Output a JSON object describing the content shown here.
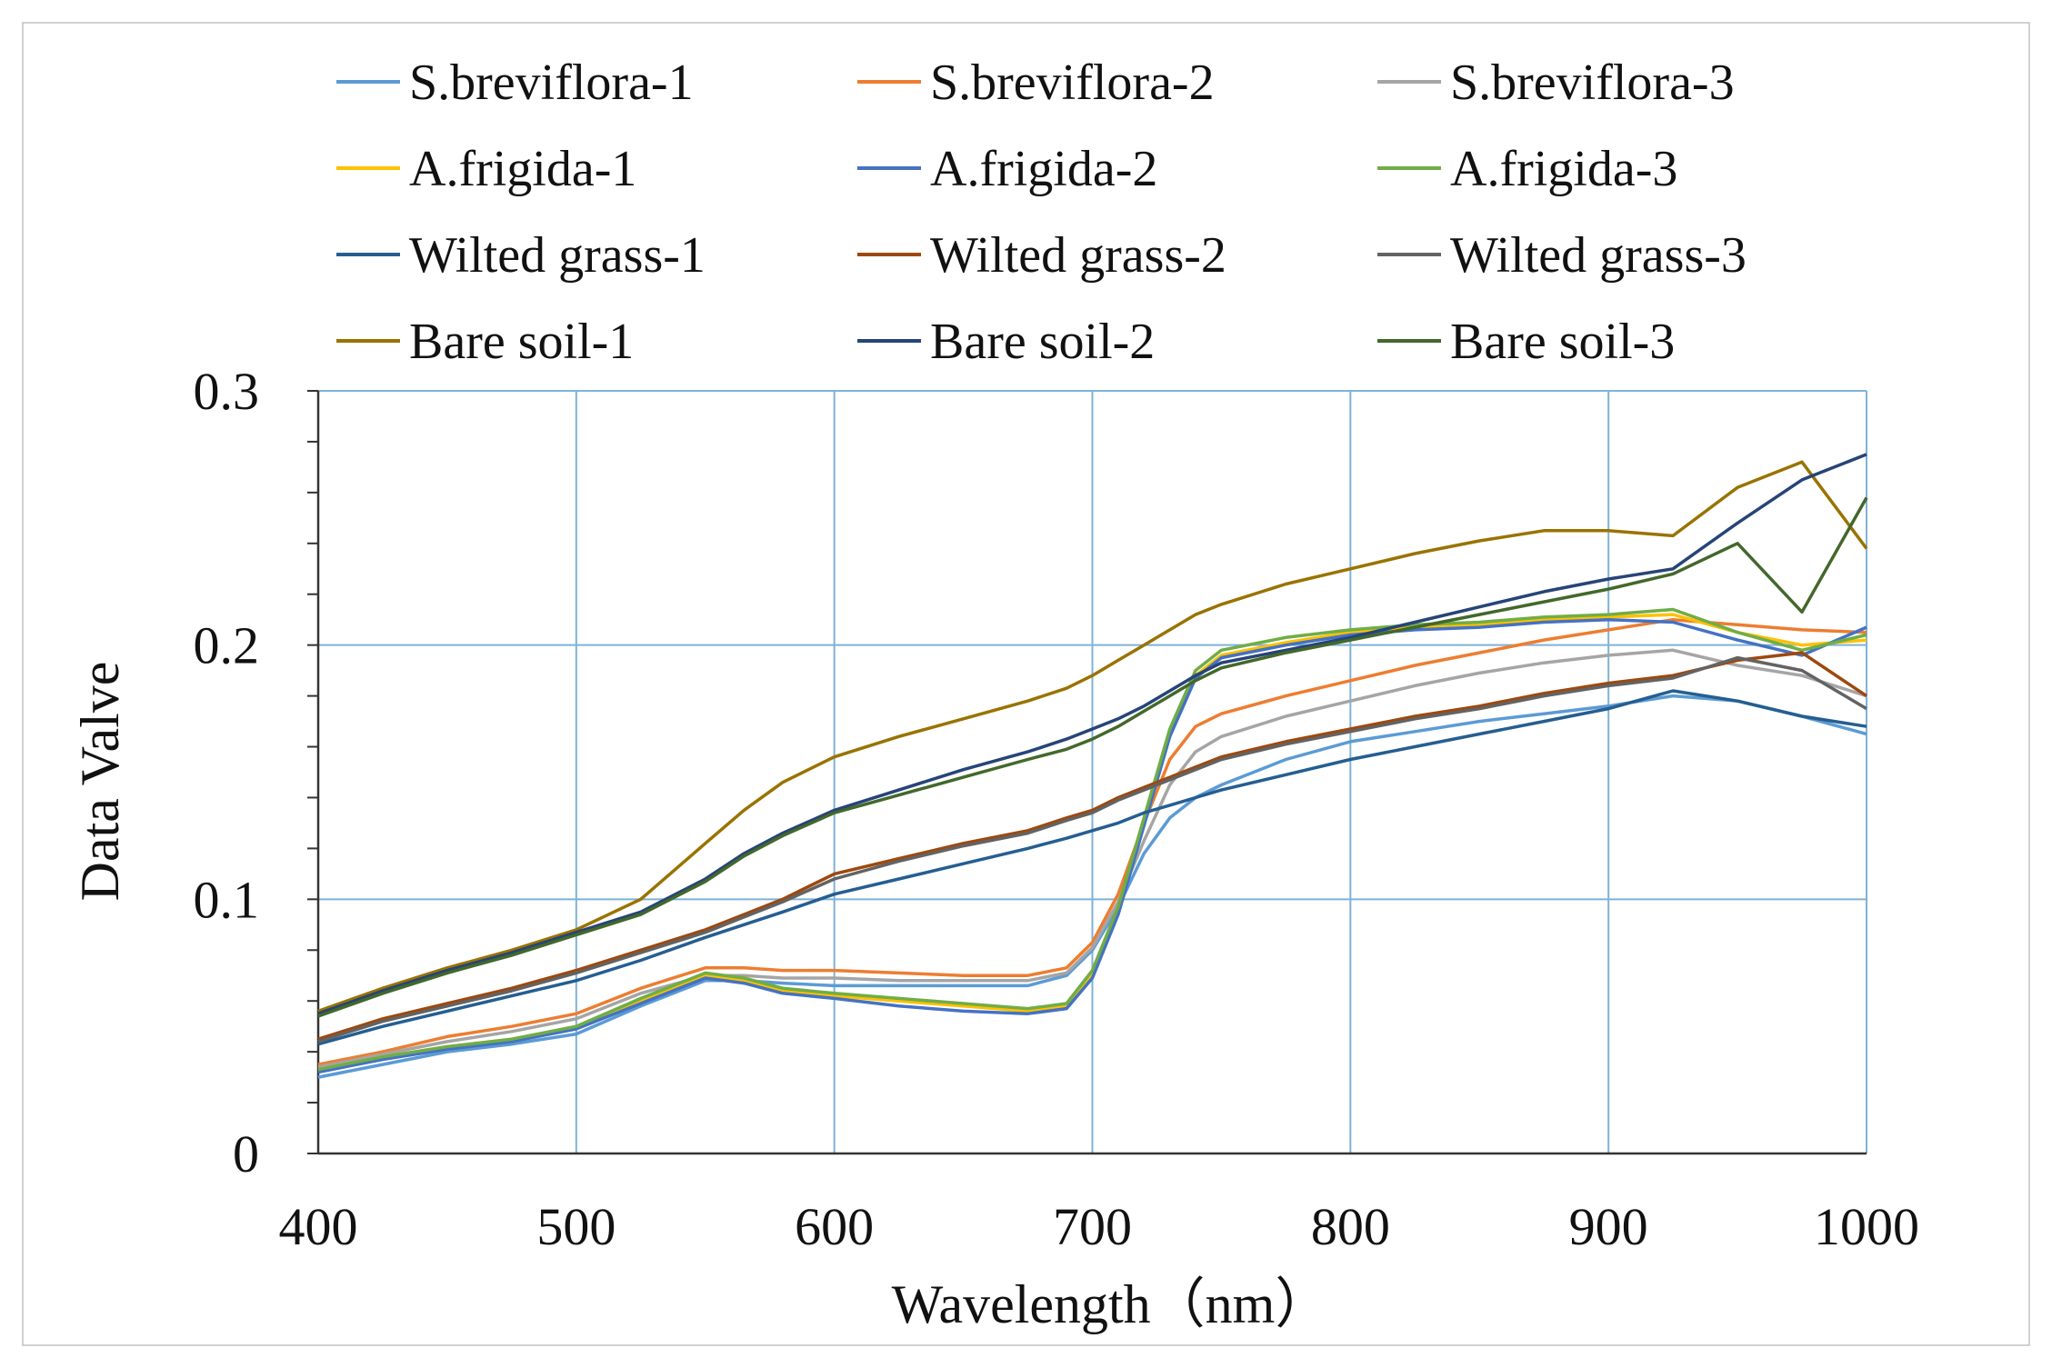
{
  "chart_data": {
    "type": "line",
    "title": "",
    "xlabel": "Wavelength（nm）",
    "ylabel": "Data Valve",
    "xlim": [
      400,
      1000
    ],
    "ylim": [
      0,
      0.3
    ],
    "grid": true,
    "legend_position": "top",
    "x_ticks": [
      400,
      500,
      600,
      700,
      800,
      900,
      1000
    ],
    "x_tick_labels": [
      "400",
      "500",
      "600",
      "700",
      "800",
      "900",
      "1000"
    ],
    "y_ticks": [
      0,
      0.1,
      0.2,
      0.3
    ],
    "y_tick_labels": [
      "0",
      "0.1",
      "0.2",
      "0.3"
    ],
    "x": [
      400,
      425,
      450,
      475,
      500,
      525,
      550,
      565,
      580,
      600,
      625,
      650,
      675,
      690,
      700,
      710,
      720,
      730,
      740,
      750,
      775,
      800,
      825,
      850,
      875,
      900,
      925,
      950,
      975,
      1000
    ],
    "series": [
      {
        "name": "S.breviflora-1",
        "color": "#5b9bd5",
        "values": [
          0.03,
          0.035,
          0.04,
          0.043,
          0.047,
          0.058,
          0.068,
          0.068,
          0.067,
          0.066,
          0.066,
          0.066,
          0.066,
          0.07,
          0.08,
          0.097,
          0.118,
          0.132,
          0.14,
          0.145,
          0.155,
          0.162,
          0.166,
          0.17,
          0.173,
          0.176,
          0.18,
          0.178,
          0.172,
          0.165
        ]
      },
      {
        "name": "S.breviflora-2",
        "color": "#ed7d31",
        "values": [
          0.035,
          0.04,
          0.046,
          0.05,
          0.055,
          0.065,
          0.073,
          0.073,
          0.072,
          0.072,
          0.071,
          0.07,
          0.07,
          0.073,
          0.083,
          0.102,
          0.13,
          0.155,
          0.168,
          0.173,
          0.18,
          0.186,
          0.192,
          0.197,
          0.202,
          0.206,
          0.21,
          0.208,
          0.206,
          0.205
        ]
      },
      {
        "name": "S.breviflora-3",
        "color": "#a5a5a5",
        "values": [
          0.034,
          0.039,
          0.044,
          0.048,
          0.053,
          0.063,
          0.07,
          0.07,
          0.069,
          0.069,
          0.068,
          0.068,
          0.068,
          0.071,
          0.081,
          0.099,
          0.123,
          0.145,
          0.158,
          0.164,
          0.172,
          0.178,
          0.184,
          0.189,
          0.193,
          0.196,
          0.198,
          0.192,
          0.188,
          0.18
        ]
      },
      {
        "name": "A.frigida-1",
        "color": "#ffc000",
        "values": [
          0.033,
          0.038,
          0.042,
          0.045,
          0.05,
          0.06,
          0.07,
          0.068,
          0.064,
          0.062,
          0.06,
          0.058,
          0.056,
          0.058,
          0.07,
          0.095,
          0.13,
          0.165,
          0.188,
          0.196,
          0.201,
          0.205,
          0.207,
          0.208,
          0.21,
          0.211,
          0.212,
          0.205,
          0.2,
          0.202
        ]
      },
      {
        "name": "A.frigida-2",
        "color": "#4472c4",
        "values": [
          0.032,
          0.037,
          0.041,
          0.044,
          0.049,
          0.059,
          0.069,
          0.067,
          0.063,
          0.061,
          0.058,
          0.056,
          0.055,
          0.057,
          0.069,
          0.094,
          0.129,
          0.164,
          0.187,
          0.195,
          0.2,
          0.204,
          0.206,
          0.207,
          0.209,
          0.21,
          0.209,
          0.202,
          0.196,
          0.207
        ]
      },
      {
        "name": "A.frigida-3",
        "color": "#70ad47",
        "values": [
          0.033,
          0.038,
          0.042,
          0.045,
          0.05,
          0.061,
          0.071,
          0.069,
          0.065,
          0.063,
          0.061,
          0.059,
          0.057,
          0.059,
          0.072,
          0.097,
          0.132,
          0.167,
          0.19,
          0.198,
          0.203,
          0.206,
          0.208,
          0.209,
          0.211,
          0.212,
          0.214,
          0.205,
          0.198,
          0.204
        ]
      },
      {
        "name": "Wilted grass-1",
        "color": "#255e91",
        "values": [
          0.043,
          0.05,
          0.056,
          0.062,
          0.068,
          0.076,
          0.085,
          0.09,
          0.095,
          0.102,
          0.108,
          0.114,
          0.12,
          0.124,
          0.127,
          0.13,
          0.134,
          0.137,
          0.14,
          0.143,
          0.149,
          0.155,
          0.16,
          0.165,
          0.17,
          0.175,
          0.182,
          0.178,
          0.172,
          0.168
        ]
      },
      {
        "name": "Wilted grass-2",
        "color": "#9e480e",
        "values": [
          0.045,
          0.053,
          0.059,
          0.065,
          0.072,
          0.08,
          0.088,
          0.094,
          0.1,
          0.11,
          0.116,
          0.122,
          0.127,
          0.132,
          0.135,
          0.14,
          0.144,
          0.148,
          0.152,
          0.156,
          0.162,
          0.167,
          0.172,
          0.176,
          0.181,
          0.185,
          0.188,
          0.194,
          0.197,
          0.18
        ]
      },
      {
        "name": "Wilted grass-3",
        "color": "#636363",
        "values": [
          0.044,
          0.052,
          0.058,
          0.064,
          0.071,
          0.079,
          0.087,
          0.093,
          0.099,
          0.108,
          0.115,
          0.121,
          0.126,
          0.131,
          0.134,
          0.139,
          0.143,
          0.147,
          0.151,
          0.155,
          0.161,
          0.166,
          0.171,
          0.175,
          0.18,
          0.184,
          0.187,
          0.195,
          0.19,
          0.175
        ]
      },
      {
        "name": "Bare soil-1",
        "color": "#997300",
        "values": [
          0.056,
          0.065,
          0.073,
          0.08,
          0.088,
          0.1,
          0.122,
          0.135,
          0.146,
          0.156,
          0.164,
          0.171,
          0.178,
          0.183,
          0.188,
          0.194,
          0.2,
          0.206,
          0.212,
          0.216,
          0.224,
          0.23,
          0.236,
          0.241,
          0.245,
          0.245,
          0.243,
          0.262,
          0.272,
          0.238
        ]
      },
      {
        "name": "Bare soil-2",
        "color": "#264478",
        "values": [
          0.055,
          0.064,
          0.072,
          0.079,
          0.087,
          0.095,
          0.108,
          0.118,
          0.126,
          0.135,
          0.143,
          0.151,
          0.158,
          0.163,
          0.167,
          0.171,
          0.176,
          0.182,
          0.188,
          0.193,
          0.198,
          0.203,
          0.209,
          0.215,
          0.221,
          0.226,
          0.23,
          0.248,
          0.265,
          0.275
        ]
      },
      {
        "name": "Bare soil-3",
        "color": "#43682b",
        "values": [
          0.054,
          0.063,
          0.071,
          0.078,
          0.086,
          0.094,
          0.107,
          0.117,
          0.125,
          0.134,
          0.141,
          0.148,
          0.155,
          0.159,
          0.163,
          0.168,
          0.174,
          0.18,
          0.186,
          0.191,
          0.197,
          0.202,
          0.207,
          0.212,
          0.217,
          0.222,
          0.228,
          0.24,
          0.213,
          0.258
        ]
      }
    ]
  }
}
